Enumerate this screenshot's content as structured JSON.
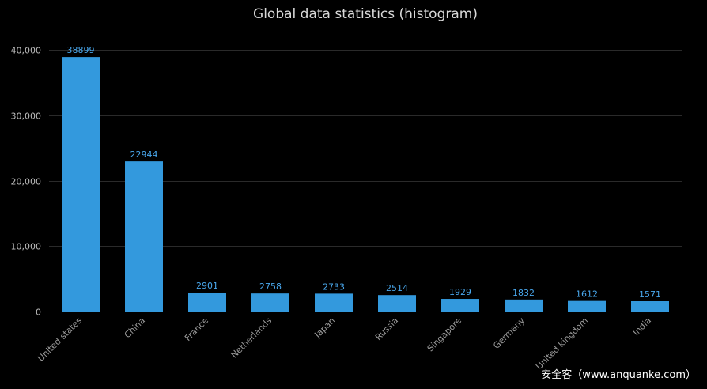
{
  "chart_data": {
    "type": "bar",
    "title": "Global data statistics (histogram)",
    "xlabel": "",
    "ylabel": "",
    "categories": [
      "United states",
      "China",
      "France",
      "Netherlands",
      "Japan",
      "Russia",
      "Singapore",
      "Germany",
      "United kingdom",
      "India"
    ],
    "values": [
      38899,
      22944,
      2901,
      2758,
      2733,
      2514,
      1929,
      1832,
      1612,
      1571
    ],
    "ylim": [
      0,
      40000
    ],
    "yticks": [
      0,
      10000,
      20000,
      30000,
      40000
    ],
    "ytick_labels": [
      "0",
      "10,000",
      "20,000",
      "30,000",
      "40,000"
    ],
    "grid": true,
    "bar_color": "#3399dd",
    "label_color": "#49a7ec",
    "grid_color": "#2a2a2a"
  },
  "watermark": "安全客（www.anquanke.com）"
}
